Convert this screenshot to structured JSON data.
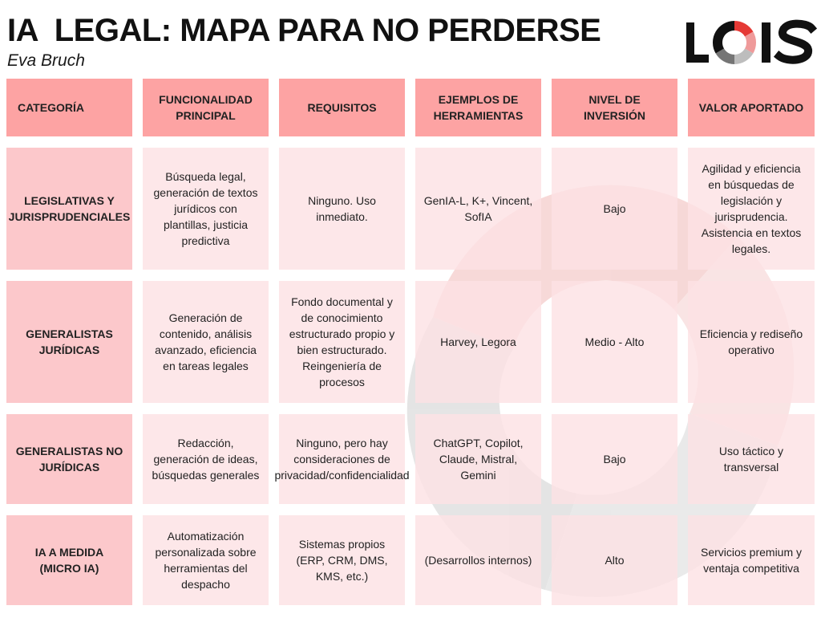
{
  "title": "IA  LEGAL: MAPA PARA NO PERDERSE",
  "author": "Eva Bruch",
  "logo": {
    "text": "LOIS",
    "colors": [
      "#e53935",
      "#ef9a9a",
      "#bdbdbd",
      "#757575",
      "#111111"
    ]
  },
  "headers": [
    "CATEGORÍA",
    "FUNCIONALIDAD PRINCIPAL",
    "REQUISITOS",
    "EJEMPLOS DE HERRAMIENTAS",
    "NIVEL DE INVERSIÓN",
    "VALOR APORTADO"
  ],
  "rows": [
    {
      "categoria": "LEGISLATIVAS Y JURISPRUDENCIALES",
      "funcionalidad": "Búsqueda legal, generación de textos jurídicos con plantillas, justicia predictiva",
      "requisitos": "Ninguno. Uso inmediato.",
      "ejemplos": "GenIA-L, K+, Vincent, SofIA",
      "inversion": "Bajo",
      "valor": "Agilidad y eficiencia en búsquedas de legislación y jurisprudencia. Asistencia en textos legales."
    },
    {
      "categoria": "GENERALISTAS JURÍDICAS",
      "funcionalidad": "Generación de contenido, análisis avanzado, eficiencia en tareas legales",
      "requisitos": "Fondo documental y de conocimiento estructurado propio y bien estructurado. Reingeniería de procesos",
      "ejemplos": "Harvey, Legora",
      "inversion": "Medio - Alto",
      "valor": "Eficiencia y rediseño operativo"
    },
    {
      "categoria": "GENERALISTAS NO JURÍDICAS",
      "funcionalidad": "Redacción, generación de ideas, búsquedas generales",
      "requisitos": "Ninguno, pero hay consideraciones de privacidad/confidencialidad",
      "ejemplos": "ChatGPT, Copilot, Claude, Mistral, Gemini",
      "inversion": "Bajo",
      "valor": "Uso táctico y transversal"
    },
    {
      "categoria": "IA A MEDIDA (MICRO IA)",
      "funcionalidad": "Automatización personalizada sobre herramientas del despacho",
      "requisitos": "Sistemas propios (ERP, CRM, DMS, KMS, etc.)",
      "ejemplos": "(Desarrollos internos)",
      "inversion": "Alto",
      "valor": "Servicios premium y ventaja competitiva"
    }
  ]
}
